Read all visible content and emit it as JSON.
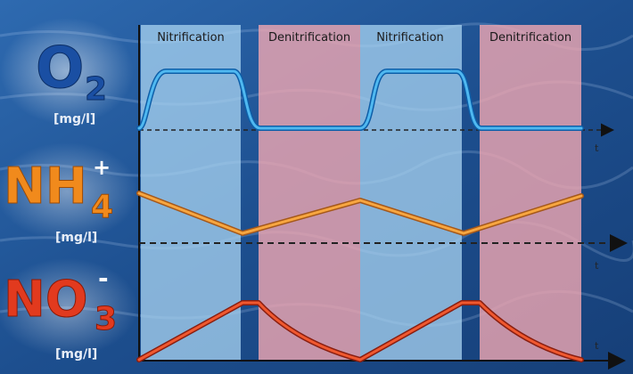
{
  "phases": [
    {
      "label": "Nitrification",
      "kind": "nitrification"
    },
    {
      "label": "Denitrification",
      "kind": "denitrification"
    },
    {
      "label": "Nitrification",
      "kind": "nitrification"
    },
    {
      "label": "Denitrification",
      "kind": "denitrification"
    }
  ],
  "panels": [
    {
      "id": "o2",
      "symbol": "O",
      "subscript": "2",
      "superscript": "",
      "unit": "[mg/l]",
      "axis_label": "t"
    },
    {
      "id": "nh4",
      "symbol": "NH",
      "subscript": "4",
      "superscript": "+",
      "unit": "[mg/l]",
      "axis_label": "t"
    },
    {
      "id": "no3",
      "symbol": "NO",
      "subscript": "3",
      "superscript": "-",
      "unit": "[mg/l]",
      "axis_label": "t"
    }
  ],
  "colors": {
    "background": "#1b4f8c",
    "nitrification_band": "#a9d4f2",
    "denitrification_band": "#f1a7b2",
    "o2_curve": "#1e8fd8",
    "nh4_curve": "#f39c2a",
    "no3_curve": "#e8452a",
    "o2_label": "#1a4fa3",
    "nh4_label": "#f18a1c",
    "no3_label": "#e23a1e",
    "unit_label": "#e8eef7"
  }
}
